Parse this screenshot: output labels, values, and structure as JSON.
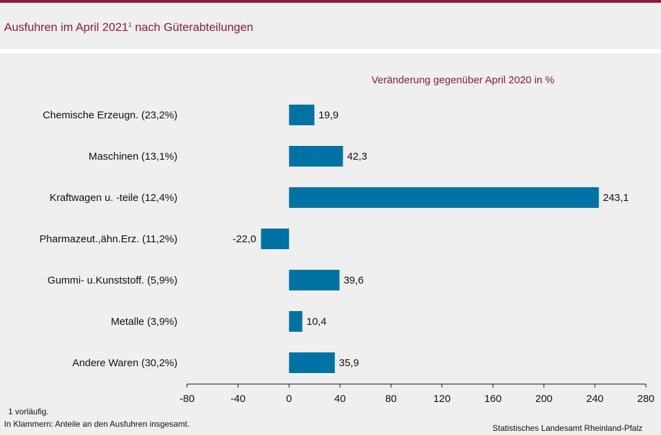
{
  "header": {
    "title": "Ausfuhren im April 2021",
    "title_footnote_mark": "1",
    "accent_color": "#8a1d3c"
  },
  "chart_data": {
    "type": "bar",
    "orientation": "horizontal",
    "subtitle": "Veränderung  gegenüber  April 2020 in %",
    "categories": [
      "Chemische Erzeugn. (23,2%)",
      "Maschinen (13,1%)",
      "Kraftwagen u. -teile (12,4%)",
      "Pharmazeut.,ähn.Erz. (11,2%)",
      "Gummi- u.Kunststoff. (5,9%)",
      "Metalle (3,9%)",
      "Andere Waren (30,2%)"
    ],
    "values": [
      19.9,
      42.3,
      243.1,
      -22.0,
      39.6,
      10.4,
      35.9
    ],
    "value_labels": [
      "19,9",
      "42,3",
      "243,1",
      "-22,0",
      "39,6",
      "10,4",
      "35,9"
    ],
    "xlim": [
      -80,
      280
    ],
    "ticks": [
      -80,
      -40,
      0,
      40,
      80,
      120,
      160,
      200,
      240,
      280
    ],
    "bar_color": "#0072a3",
    "grid": false
  },
  "footer": {
    "note1": "1 vorläufig.",
    "note2": "In Klammern:  Anteile  an  den  Ausfuhren  insgesamt.",
    "source": "Statistisches Landesamt Rheinland-Pfalz"
  }
}
